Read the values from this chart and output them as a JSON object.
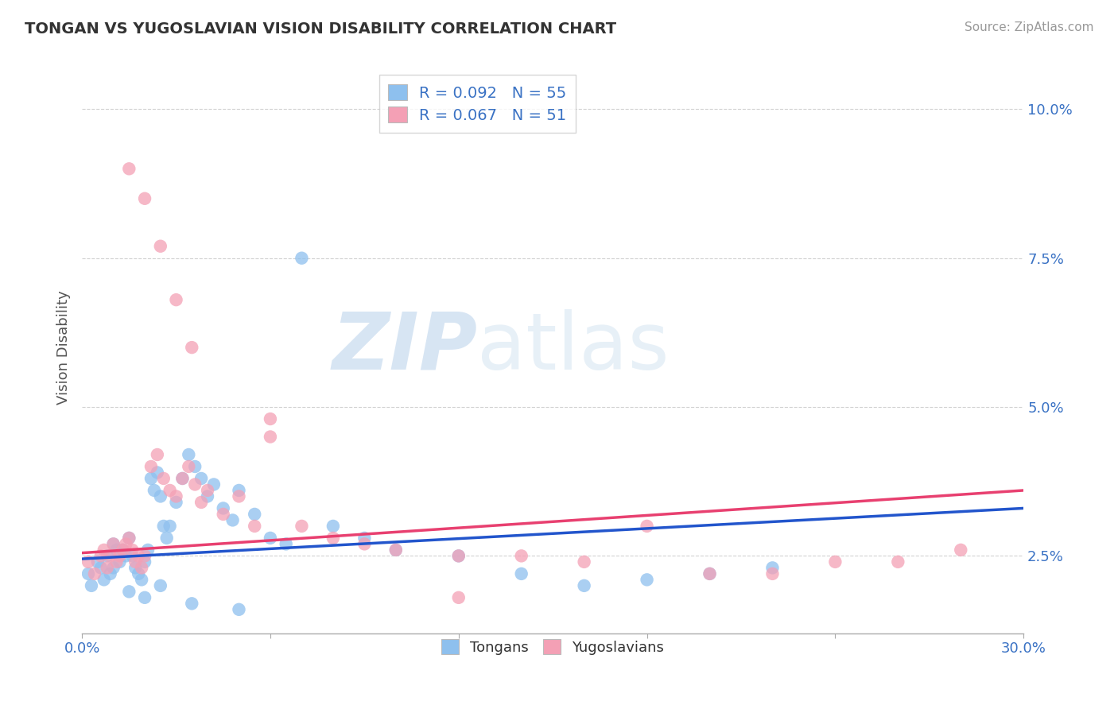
{
  "title": "TONGAN VS YUGOSLAVIAN VISION DISABILITY CORRELATION CHART",
  "source": "Source: ZipAtlas.com",
  "ylabel": "Vision Disability",
  "ytick_labels": [
    "2.5%",
    "5.0%",
    "7.5%",
    "10.0%"
  ],
  "ytick_values": [
    0.025,
    0.05,
    0.075,
    0.1
  ],
  "xlim": [
    0.0,
    0.3
  ],
  "ylim": [
    0.012,
    0.108
  ],
  "legend_label1": "R = 0.092   N = 55",
  "legend_label2": "R = 0.067   N = 51",
  "color_blue": "#8EC0EE",
  "color_pink": "#F4A0B5",
  "line_color_blue": "#2255CC",
  "line_color_pink": "#E84070",
  "watermark_zip": "ZIP",
  "watermark_atlas": "atlas",
  "legend_bottom_label1": "Tongans",
  "legend_bottom_label2": "Yugoslavians",
  "tongans_x": [
    0.002,
    0.003,
    0.005,
    0.006,
    0.007,
    0.008,
    0.009,
    0.01,
    0.01,
    0.011,
    0.012,
    0.013,
    0.014,
    0.015,
    0.016,
    0.017,
    0.018,
    0.019,
    0.02,
    0.021,
    0.022,
    0.023,
    0.024,
    0.025,
    0.026,
    0.027,
    0.028,
    0.03,
    0.032,
    0.034,
    0.036,
    0.038,
    0.04,
    0.042,
    0.045,
    0.048,
    0.05,
    0.055,
    0.06,
    0.065,
    0.07,
    0.08,
    0.09,
    0.1,
    0.12,
    0.14,
    0.16,
    0.18,
    0.2,
    0.22,
    0.015,
    0.02,
    0.025,
    0.035,
    0.05
  ],
  "tongans_y": [
    0.022,
    0.02,
    0.024,
    0.023,
    0.021,
    0.025,
    0.022,
    0.023,
    0.027,
    0.026,
    0.024,
    0.026,
    0.025,
    0.028,
    0.025,
    0.023,
    0.022,
    0.021,
    0.024,
    0.026,
    0.038,
    0.036,
    0.039,
    0.035,
    0.03,
    0.028,
    0.03,
    0.034,
    0.038,
    0.042,
    0.04,
    0.038,
    0.035,
    0.037,
    0.033,
    0.031,
    0.036,
    0.032,
    0.028,
    0.027,
    0.075,
    0.03,
    0.028,
    0.026,
    0.025,
    0.022,
    0.02,
    0.021,
    0.022,
    0.023,
    0.019,
    0.018,
    0.02,
    0.017,
    0.016
  ],
  "yugoslavians_x": [
    0.002,
    0.004,
    0.006,
    0.007,
    0.008,
    0.009,
    0.01,
    0.011,
    0.012,
    0.013,
    0.014,
    0.015,
    0.016,
    0.017,
    0.018,
    0.019,
    0.02,
    0.022,
    0.024,
    0.026,
    0.028,
    0.03,
    0.032,
    0.034,
    0.036,
    0.038,
    0.04,
    0.045,
    0.05,
    0.055,
    0.06,
    0.07,
    0.08,
    0.09,
    0.1,
    0.12,
    0.14,
    0.16,
    0.18,
    0.2,
    0.22,
    0.24,
    0.26,
    0.28,
    0.015,
    0.02,
    0.025,
    0.03,
    0.035,
    0.06,
    0.12
  ],
  "yugoslavians_y": [
    0.024,
    0.022,
    0.025,
    0.026,
    0.023,
    0.025,
    0.027,
    0.024,
    0.025,
    0.026,
    0.027,
    0.028,
    0.026,
    0.024,
    0.025,
    0.023,
    0.025,
    0.04,
    0.042,
    0.038,
    0.036,
    0.035,
    0.038,
    0.04,
    0.037,
    0.034,
    0.036,
    0.032,
    0.035,
    0.03,
    0.045,
    0.03,
    0.028,
    0.027,
    0.026,
    0.025,
    0.025,
    0.024,
    0.03,
    0.022,
    0.022,
    0.024,
    0.024,
    0.026,
    0.09,
    0.085,
    0.077,
    0.068,
    0.06,
    0.048,
    0.018
  ],
  "tonga_line_x": [
    0.0,
    0.3
  ],
  "tonga_line_y": [
    0.0245,
    0.033
  ],
  "yugo_line_x": [
    0.0,
    0.3
  ],
  "yugo_line_y": [
    0.0255,
    0.036
  ]
}
